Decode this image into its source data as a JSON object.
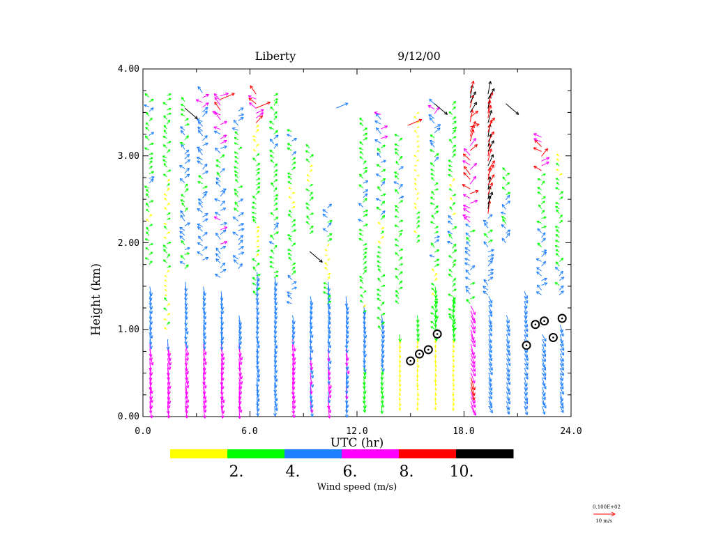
{
  "chart_data": {
    "type": "wind-profile-barbs",
    "title_site": "Liberty",
    "title_date": "9/12/00",
    "xlabel": "UTC (hr)",
    "ylabel": "Height (km)",
    "xlim": [
      0,
      24
    ],
    "ylim": [
      0,
      4
    ],
    "x_ticks": [
      "0.0",
      "6.0",
      "12.0",
      "18.0",
      "24.0"
    ],
    "y_ticks": [
      "0.00",
      "1.00",
      "2.00",
      "3.00",
      "4.00"
    ],
    "colorbar": {
      "title": "Wind speed (m/s)",
      "labels": [
        "2.",
        "4.",
        "6.",
        "8.",
        "10."
      ],
      "colors": [
        "#ffff00",
        "#00ff00",
        "#1e7fff",
        "#ff00ff",
        "#ff0000",
        "#000000"
      ]
    },
    "reference_vector": {
      "value_label": "0.100E+02",
      "unit_label": "10 m/s",
      "color": "#ff0000"
    },
    "profile_times": [
      0.5,
      1.5,
      2.5,
      3.5,
      4.5,
      5.5,
      6.5,
      7.5,
      8.5,
      9.5,
      10.5,
      11.5,
      12.5,
      13.5,
      14.5,
      15.5,
      16.5,
      17.5,
      18.5,
      19.5,
      20.5,
      21.5,
      22.5,
      23.5
    ],
    "low_profile_top_km": [
      1.5,
      0.9,
      1.55,
      1.5,
      1.45,
      1.2,
      1.7,
      1.65,
      1.2,
      1.4,
      1.6,
      1.4,
      1.3,
      1.2,
      1.0,
      1.2,
      1.5,
      1.4,
      1.3,
      1.4,
      1.2,
      1.45,
      1.0,
      1.1
    ],
    "upper_profiles": [
      {
        "t": 0.5,
        "bottom": 1.75,
        "top": 3.7,
        "speeds": [
          3,
          3,
          2,
          3,
          4,
          3,
          4,
          3,
          4
        ]
      },
      {
        "t": 1.5,
        "bottom": 1.0,
        "top": 3.7,
        "speeds": [
          2,
          1,
          3,
          2,
          2,
          3,
          3,
          3
        ]
      },
      {
        "t": 2.5,
        "bottom": 1.7,
        "top": 3.6,
        "speeds": [
          4,
          5,
          3,
          5,
          4,
          3
        ]
      },
      {
        "t": 3.5,
        "bottom": 1.8,
        "top": 3.7,
        "speeds": [
          5,
          5,
          4,
          5,
          5,
          6
        ]
      },
      {
        "t": 4.5,
        "bottom": 1.6,
        "top": 3.7,
        "speeds": [
          5,
          6,
          5,
          4,
          6,
          8
        ]
      },
      {
        "t": 5.5,
        "bottom": 1.7,
        "top": 3.5,
        "speeds": [
          5,
          5,
          4,
          3,
          3,
          5
        ]
      },
      {
        "t": 6.5,
        "bottom": 1.4,
        "top": 3.7,
        "speeds": [
          3,
          2,
          3,
          3,
          2,
          8
        ]
      },
      {
        "t": 7.5,
        "bottom": 1.6,
        "top": 3.7,
        "speeds": [
          3,
          4,
          3,
          3,
          4,
          3
        ]
      },
      {
        "t": 8.5,
        "bottom": 1.3,
        "top": 3.3,
        "speeds": [
          4,
          3,
          3,
          2,
          3,
          4
        ]
      },
      {
        "t": 9.5,
        "bottom": 2.1,
        "top": 3.1,
        "speeds": [
          3,
          3,
          2,
          3
        ]
      },
      {
        "t": 10.5,
        "bottom": 1.3,
        "top": 2.4,
        "speeds": [
          3,
          2,
          1,
          4,
          4
        ]
      },
      {
        "t": 12.5,
        "bottom": 1.2,
        "top": 3.4,
        "speeds": [
          2,
          3,
          3,
          4,
          4,
          3,
          3
        ]
      },
      {
        "t": 13.5,
        "bottom": 1.0,
        "top": 3.5,
        "speeds": [
          3,
          3,
          2,
          4,
          4,
          6
        ]
      },
      {
        "t": 14.5,
        "bottom": 1.3,
        "top": 3.2,
        "speeds": [
          3,
          3,
          3,
          4,
          3
        ]
      },
      {
        "t": 15.5,
        "bottom": 2.0,
        "top": 3.5,
        "speeds": [
          2,
          1,
          1,
          1
        ]
      },
      {
        "t": 16.5,
        "bottom": 0.9,
        "top": 3.6,
        "speeds": [
          3,
          2,
          4,
          3,
          3,
          4,
          6
        ]
      },
      {
        "t": 17.5,
        "bottom": 1.0,
        "top": 3.6,
        "speeds": [
          3,
          3,
          4,
          2,
          3,
          3
        ]
      },
      {
        "t": 18.5,
        "bottom": 1.3,
        "top": 3.7,
        "speeds": [
          4,
          5,
          4,
          7,
          8,
          8,
          9,
          10
        ]
      },
      {
        "t": 19.5,
        "bottom": 1.4,
        "top": 3.7,
        "speeds": [
          5,
          5,
          4,
          10,
          10,
          10,
          10,
          10
        ]
      },
      {
        "t": 20.5,
        "bottom": 2.0,
        "top": 2.8,
        "speeds": [
          4,
          4,
          3
        ]
      },
      {
        "t": 22.5,
        "bottom": 1.4,
        "top": 3.2,
        "speeds": [
          5,
          4,
          3,
          8
        ]
      },
      {
        "t": 23.5,
        "bottom": 1.4,
        "top": 3.0,
        "speeds": [
          4,
          3,
          3,
          2
        ]
      }
    ],
    "isolated_vectors": [
      {
        "t": 2.5,
        "z": 3.55,
        "speed": 10
      },
      {
        "t": 4.5,
        "z": 3.65,
        "speed": 8
      },
      {
        "t": 6.5,
        "z": 3.55,
        "speed": 8
      },
      {
        "t": 9.5,
        "z": 1.9,
        "speed": 10
      },
      {
        "t": 11.0,
        "z": 3.55,
        "speed": 4
      },
      {
        "t": 16.5,
        "z": 3.6,
        "speed": 10
      },
      {
        "t": 15.0,
        "z": 3.35,
        "speed": 8
      },
      {
        "t": 20.5,
        "z": 3.6,
        "speed": 10
      }
    ],
    "boundary_layer_markers": [
      {
        "t": 15.0,
        "z": 0.64
      },
      {
        "t": 15.5,
        "z": 0.72
      },
      {
        "t": 16.0,
        "z": 0.77
      },
      {
        "t": 16.5,
        "z": 0.95
      },
      {
        "t": 21.5,
        "z": 0.82
      },
      {
        "t": 22.0,
        "z": 1.06
      },
      {
        "t": 22.5,
        "z": 1.1
      },
      {
        "t": 23.0,
        "z": 0.91
      },
      {
        "t": 23.5,
        "z": 1.13
      }
    ]
  }
}
